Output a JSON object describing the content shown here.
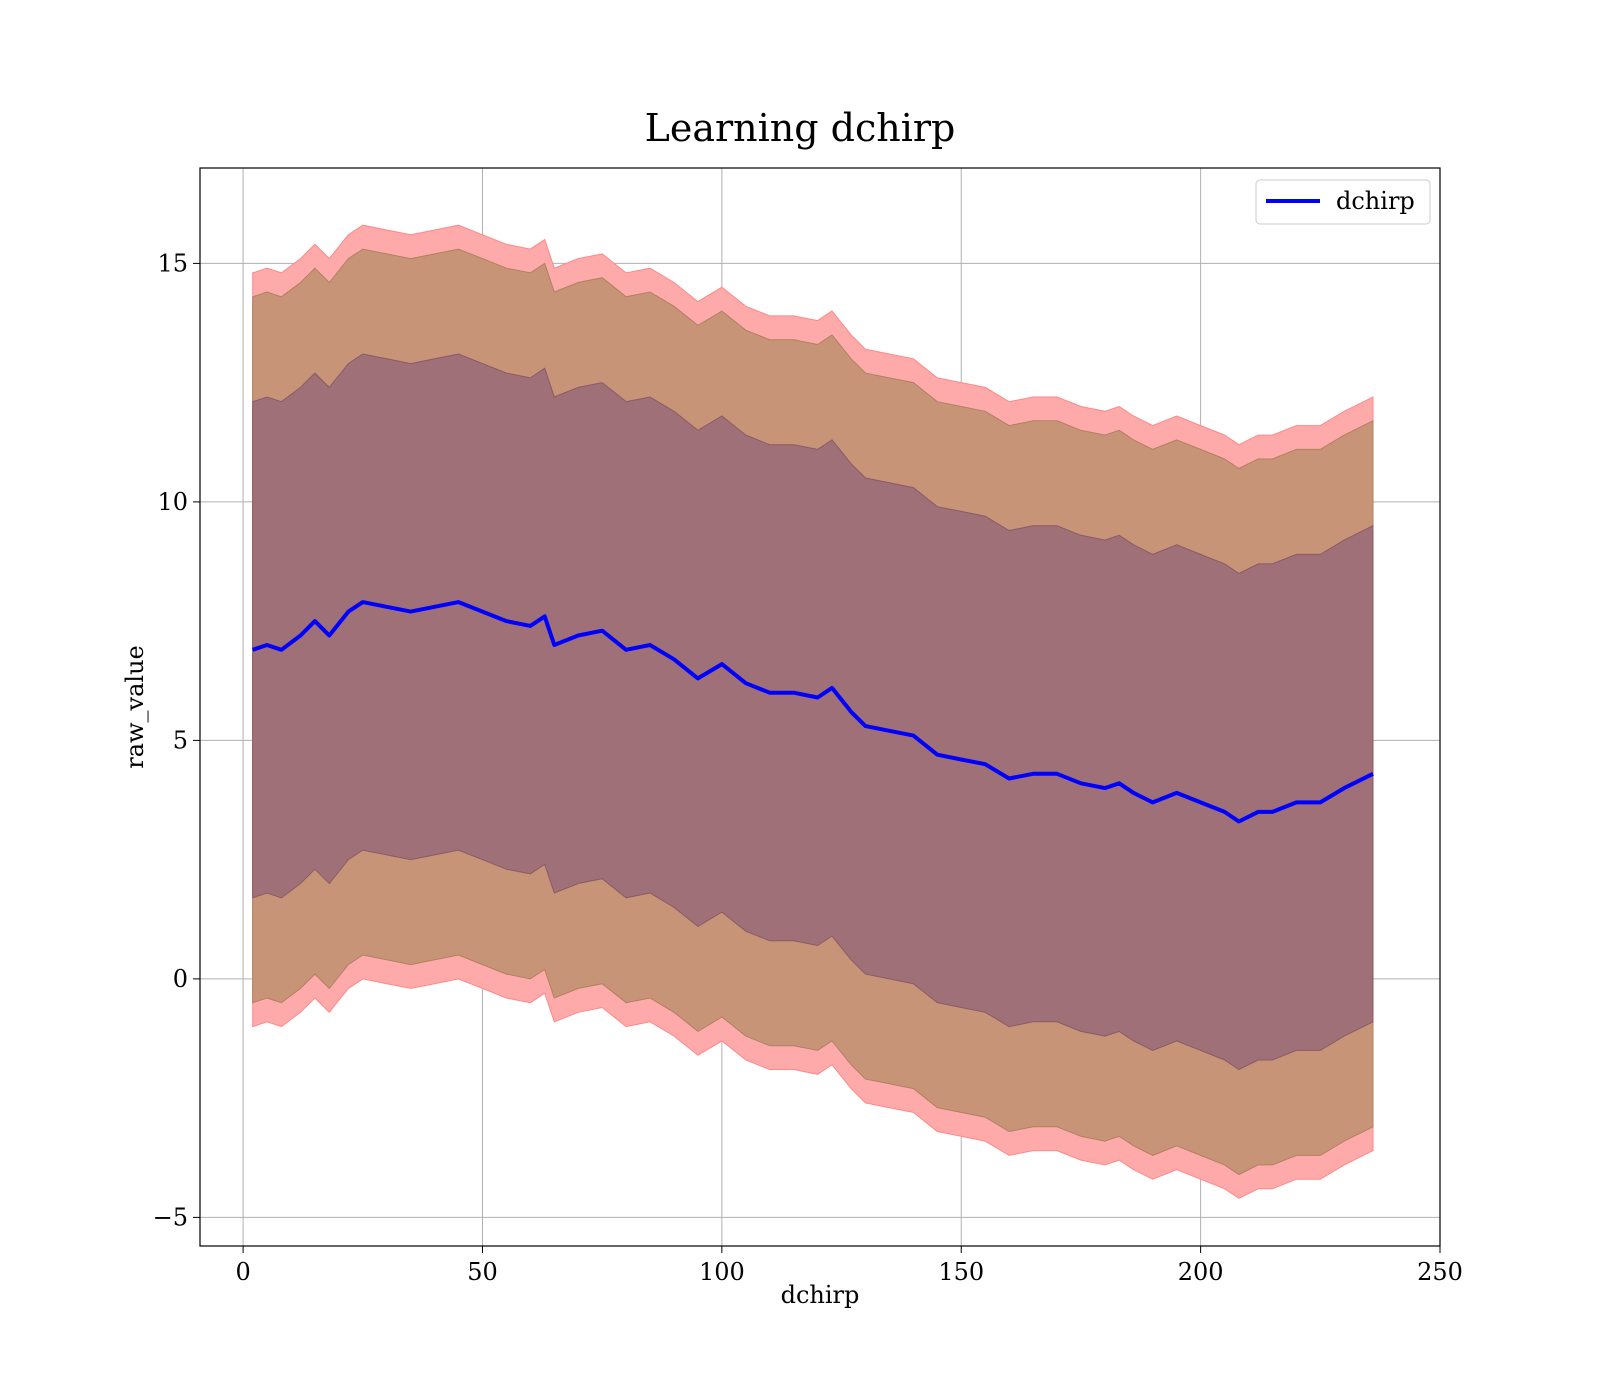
{
  "chart_data": {
    "type": "line",
    "title": "Learning dchirp",
    "xlabel": "dchirp",
    "ylabel": "raw_value",
    "xlim": [
      -9,
      250
    ],
    "ylim": [
      -5.6,
      17
    ],
    "xticks": [
      0,
      50,
      100,
      150,
      200,
      250
    ],
    "yticks": [
      -5,
      0,
      5,
      10,
      15
    ],
    "xtick_labels": [
      "0",
      "50",
      "100",
      "150",
      "200",
      "250"
    ],
    "ytick_labels": [
      "−5",
      "0",
      "5",
      "10",
      "15"
    ],
    "grid": true,
    "legend": {
      "placement": "top-right",
      "entries": [
        {
          "name": "dchirp",
          "color": "#0000ff"
        }
      ]
    },
    "colors": {
      "mean_line": "#0000ff",
      "outer_band": "#ffaaaa",
      "middle_band": "#c89478",
      "inner_band": "#a07078"
    },
    "x": [
      2,
      5,
      8,
      12,
      15,
      18,
      22,
      25,
      30,
      35,
      40,
      45,
      50,
      55,
      60,
      63,
      65,
      70,
      75,
      80,
      85,
      90,
      95,
      100,
      105,
      110,
      115,
      120,
      123,
      127,
      130,
      135,
      140,
      145,
      150,
      155,
      160,
      165,
      170,
      175,
      180,
      183,
      186,
      190,
      195,
      200,
      205,
      208,
      212,
      215,
      220,
      225,
      230,
      236
    ],
    "mean": [
      6.9,
      7.0,
      6.9,
      7.2,
      7.5,
      7.2,
      7.7,
      7.9,
      7.8,
      7.7,
      7.8,
      7.9,
      7.7,
      7.5,
      7.4,
      7.6,
      7.0,
      7.2,
      7.3,
      6.9,
      7.0,
      6.7,
      6.3,
      6.6,
      6.2,
      6.0,
      6.0,
      5.9,
      6.1,
      5.6,
      5.3,
      5.2,
      5.1,
      4.7,
      4.6,
      4.5,
      4.2,
      4.3,
      4.3,
      4.1,
      4.0,
      4.1,
      3.9,
      3.7,
      3.9,
      3.7,
      3.5,
      3.3,
      3.5,
      3.5,
      3.7,
      3.7,
      4.0,
      4.3
    ],
    "series": [
      {
        "name": "dchirp",
        "values": [
          6.9,
          7.0,
          6.9,
          7.2,
          7.5,
          7.2,
          7.7,
          7.9,
          7.8,
          7.7,
          7.8,
          7.9,
          7.7,
          7.5,
          7.4,
          7.6,
          7.0,
          7.2,
          7.3,
          6.9,
          7.0,
          6.7,
          6.3,
          6.6,
          6.2,
          6.0,
          6.0,
          5.9,
          6.1,
          5.6,
          5.3,
          5.2,
          5.1,
          4.7,
          4.6,
          4.5,
          4.2,
          4.3,
          4.3,
          4.1,
          4.0,
          4.1,
          3.9,
          3.7,
          3.9,
          3.7,
          3.5,
          3.3,
          3.5,
          3.5,
          3.7,
          3.7,
          4.0,
          4.3
        ]
      }
    ],
    "band_half_widths": {
      "inner": 5.2,
      "middle": 7.4,
      "outer": 7.9
    }
  }
}
